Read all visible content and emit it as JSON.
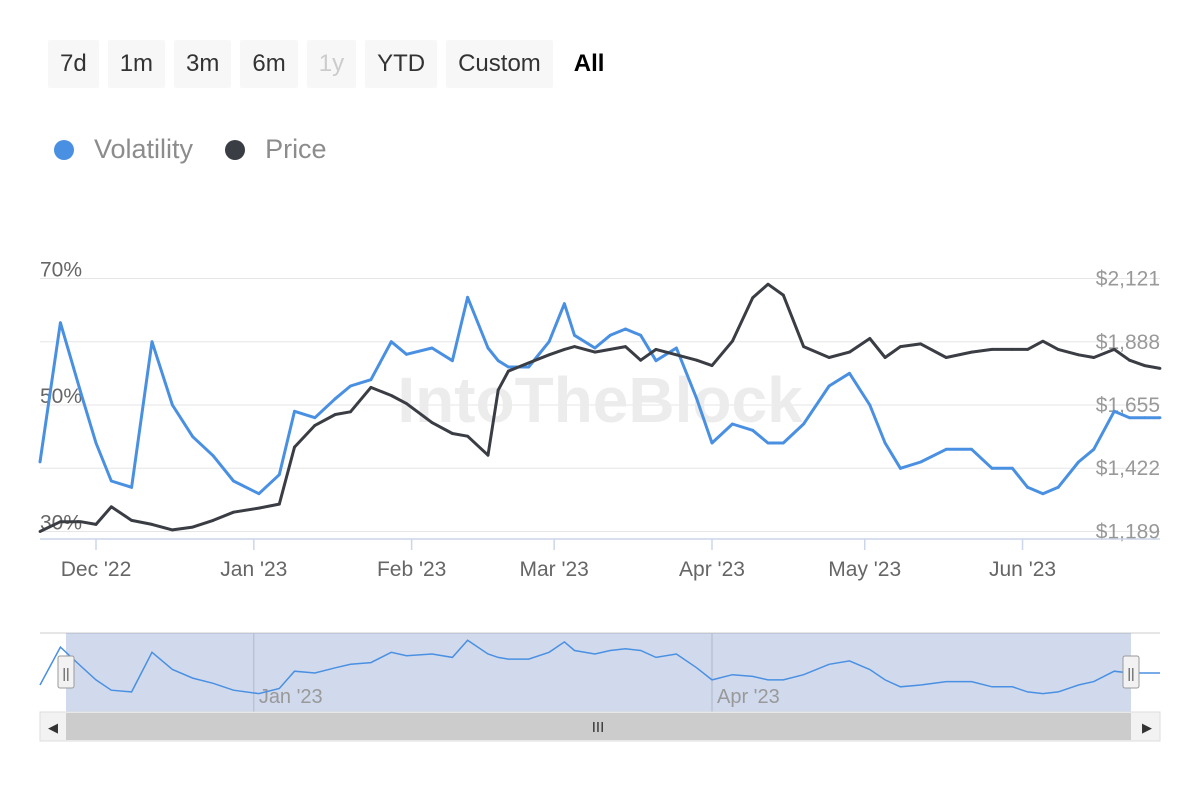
{
  "range_selector": {
    "buttons": [
      {
        "label": "7d",
        "state": "normal"
      },
      {
        "label": "1m",
        "state": "normal"
      },
      {
        "label": "3m",
        "state": "normal"
      },
      {
        "label": "6m",
        "state": "normal"
      },
      {
        "label": "1y",
        "state": "disabled"
      },
      {
        "label": "YTD",
        "state": "normal"
      },
      {
        "label": "Custom",
        "state": "normal"
      },
      {
        "label": "All",
        "state": "active"
      }
    ]
  },
  "legend": {
    "items": [
      {
        "label": "Volatility",
        "color": "#4a90e2"
      },
      {
        "label": "Price",
        "color": "#3a3d44"
      }
    ]
  },
  "watermark": "IntoTheBlock",
  "navigator": {
    "tick_labels": [
      "Jan '23",
      "Apr '23"
    ],
    "handle_glyph": "||",
    "scrollbar_glyph": "III",
    "left_arrow": "◀",
    "right_arrow": "▶"
  },
  "chart_data": {
    "type": "line",
    "title": "",
    "xlabel": "",
    "x_tick_labels": [
      "Dec '22",
      "Jan '23",
      "Feb '23",
      "Mar '23",
      "Apr '23",
      "May '23",
      "Jun '23"
    ],
    "y_left": {
      "tick_labels": [
        "30%",
        "50%",
        "70%"
      ],
      "ticks": [
        30,
        50,
        70
      ],
      "range": [
        29,
        71
      ]
    },
    "y_right": {
      "tick_labels": [
        "$1,189",
        "$1,422",
        "$1,655",
        "$1,888",
        "$2,121"
      ],
      "ticks": [
        1189,
        1422,
        1655,
        1888,
        2121
      ],
      "range": [
        1165,
        2145
      ]
    },
    "grid": true,
    "legend_position": "top-left",
    "series": [
      {
        "name": "Volatility",
        "axis": "left",
        "color": "#4a90e2",
        "x": [
          "2022-11-20",
          "2022-11-24",
          "2022-11-28",
          "2022-12-01",
          "2022-12-04",
          "2022-12-08",
          "2022-12-12",
          "2022-12-16",
          "2022-12-20",
          "2022-12-24",
          "2022-12-28",
          "2023-01-02",
          "2023-01-06",
          "2023-01-09",
          "2023-01-13",
          "2023-01-17",
          "2023-01-20",
          "2023-01-24",
          "2023-01-28",
          "2023-01-31",
          "2023-02-05",
          "2023-02-09",
          "2023-02-12",
          "2023-02-16",
          "2023-02-18",
          "2023-02-20",
          "2023-02-24",
          "2023-02-28",
          "2023-03-03",
          "2023-03-05",
          "2023-03-09",
          "2023-03-12",
          "2023-03-15",
          "2023-03-18",
          "2023-03-21",
          "2023-03-25",
          "2023-03-29",
          "2023-04-01",
          "2023-04-05",
          "2023-04-09",
          "2023-04-12",
          "2023-04-15",
          "2023-04-19",
          "2023-04-24",
          "2023-04-28",
          "2023-05-02",
          "2023-05-05",
          "2023-05-08",
          "2023-05-12",
          "2023-05-17",
          "2023-05-22",
          "2023-05-26",
          "2023-05-30",
          "2023-06-02",
          "2023-06-05",
          "2023-06-08",
          "2023-06-12",
          "2023-06-15",
          "2023-06-19",
          "2023-06-22",
          "2023-06-25",
          "2023-06-28"
        ],
        "values": [
          41,
          63,
          52,
          44,
          38,
          37,
          60,
          50,
          45,
          42,
          38,
          36,
          39,
          49,
          48,
          51,
          53,
          54,
          60,
          58,
          59,
          57,
          67,
          59,
          57,
          56,
          56,
          60,
          66,
          61,
          59,
          61,
          62,
          61,
          57,
          59,
          51,
          44,
          47,
          46,
          44,
          44,
          47,
          53,
          55,
          50,
          44,
          40,
          41,
          43,
          43,
          40,
          40,
          37,
          36,
          37,
          41,
          43,
          49,
          48,
          48,
          48
        ]
      },
      {
        "name": "Price",
        "axis": "right",
        "color": "#3a3d44",
        "x": [
          "2022-11-20",
          "2022-11-24",
          "2022-11-28",
          "2022-12-01",
          "2022-12-04",
          "2022-12-08",
          "2022-12-12",
          "2022-12-16",
          "2022-12-20",
          "2022-12-24",
          "2022-12-28",
          "2023-01-02",
          "2023-01-06",
          "2023-01-09",
          "2023-01-13",
          "2023-01-17",
          "2023-01-20",
          "2023-01-24",
          "2023-01-28",
          "2023-01-31",
          "2023-02-05",
          "2023-02-09",
          "2023-02-12",
          "2023-02-16",
          "2023-02-18",
          "2023-02-20",
          "2023-02-24",
          "2023-02-28",
          "2023-03-03",
          "2023-03-05",
          "2023-03-09",
          "2023-03-12",
          "2023-03-15",
          "2023-03-18",
          "2023-03-21",
          "2023-03-25",
          "2023-03-29",
          "2023-04-01",
          "2023-04-05",
          "2023-04-09",
          "2023-04-12",
          "2023-04-15",
          "2023-04-19",
          "2023-04-24",
          "2023-04-28",
          "2023-05-02",
          "2023-05-05",
          "2023-05-08",
          "2023-05-12",
          "2023-05-17",
          "2023-05-22",
          "2023-05-26",
          "2023-05-30",
          "2023-06-02",
          "2023-06-05",
          "2023-06-08",
          "2023-06-12",
          "2023-06-15",
          "2023-06-19",
          "2023-06-22",
          "2023-06-25",
          "2023-06-28"
        ],
        "values": [
          1189,
          1225,
          1225,
          1215,
          1280,
          1230,
          1215,
          1195,
          1205,
          1230,
          1260,
          1275,
          1290,
          1500,
          1580,
          1620,
          1630,
          1720,
          1690,
          1660,
          1590,
          1550,
          1540,
          1470,
          1710,
          1780,
          1810,
          1840,
          1860,
          1870,
          1850,
          1860,
          1870,
          1820,
          1860,
          1840,
          1820,
          1800,
          1890,
          2050,
          2100,
          2060,
          1870,
          1830,
          1850,
          1900,
          1830,
          1870,
          1880,
          1830,
          1850,
          1860,
          1860,
          1860,
          1890,
          1860,
          1840,
          1830,
          1860,
          1820,
          1800,
          1790
        ]
      }
    ]
  }
}
